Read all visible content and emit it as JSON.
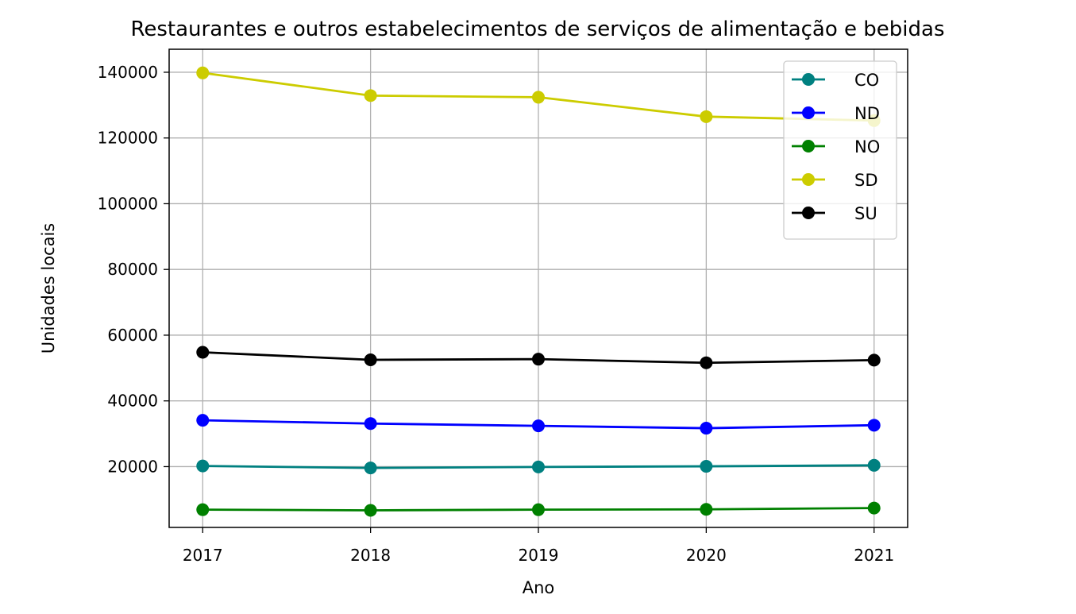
{
  "chart_data": {
    "type": "line",
    "title": "Restaurantes e outros estabelecimentos de serviços de alimentação e bebidas",
    "xlabel": "Ano",
    "ylabel": "Unidades locais",
    "x": [
      2017,
      2018,
      2019,
      2020,
      2021
    ],
    "x_tick_labels": [
      "2017",
      "2018",
      "2019",
      "2020",
      "2021"
    ],
    "xlim": [
      2016.8,
      2021.2
    ],
    "ylim": [
      1500,
      147000
    ],
    "y_ticks": [
      20000,
      40000,
      60000,
      80000,
      100000,
      120000,
      140000
    ],
    "y_tick_labels": [
      "20000",
      "40000",
      "60000",
      "80000",
      "100000",
      "120000",
      "140000"
    ],
    "grid": true,
    "legend_position": "upper-right",
    "series": [
      {
        "name": "CO",
        "color": "#008080",
        "values": [
          20200,
          19600,
          19900,
          20100,
          20400
        ]
      },
      {
        "name": "ND",
        "color": "#0000ff",
        "values": [
          34100,
          33100,
          32400,
          31700,
          32600
        ]
      },
      {
        "name": "NO",
        "color": "#008000",
        "values": [
          6900,
          6700,
          6900,
          7000,
          7400
        ]
      },
      {
        "name": "SD",
        "color": "#cccc00",
        "values": [
          139800,
          132900,
          132400,
          126500,
          125300
        ]
      },
      {
        "name": "SU",
        "color": "#000000",
        "values": [
          54800,
          52500,
          52700,
          51600,
          52400
        ]
      }
    ]
  }
}
